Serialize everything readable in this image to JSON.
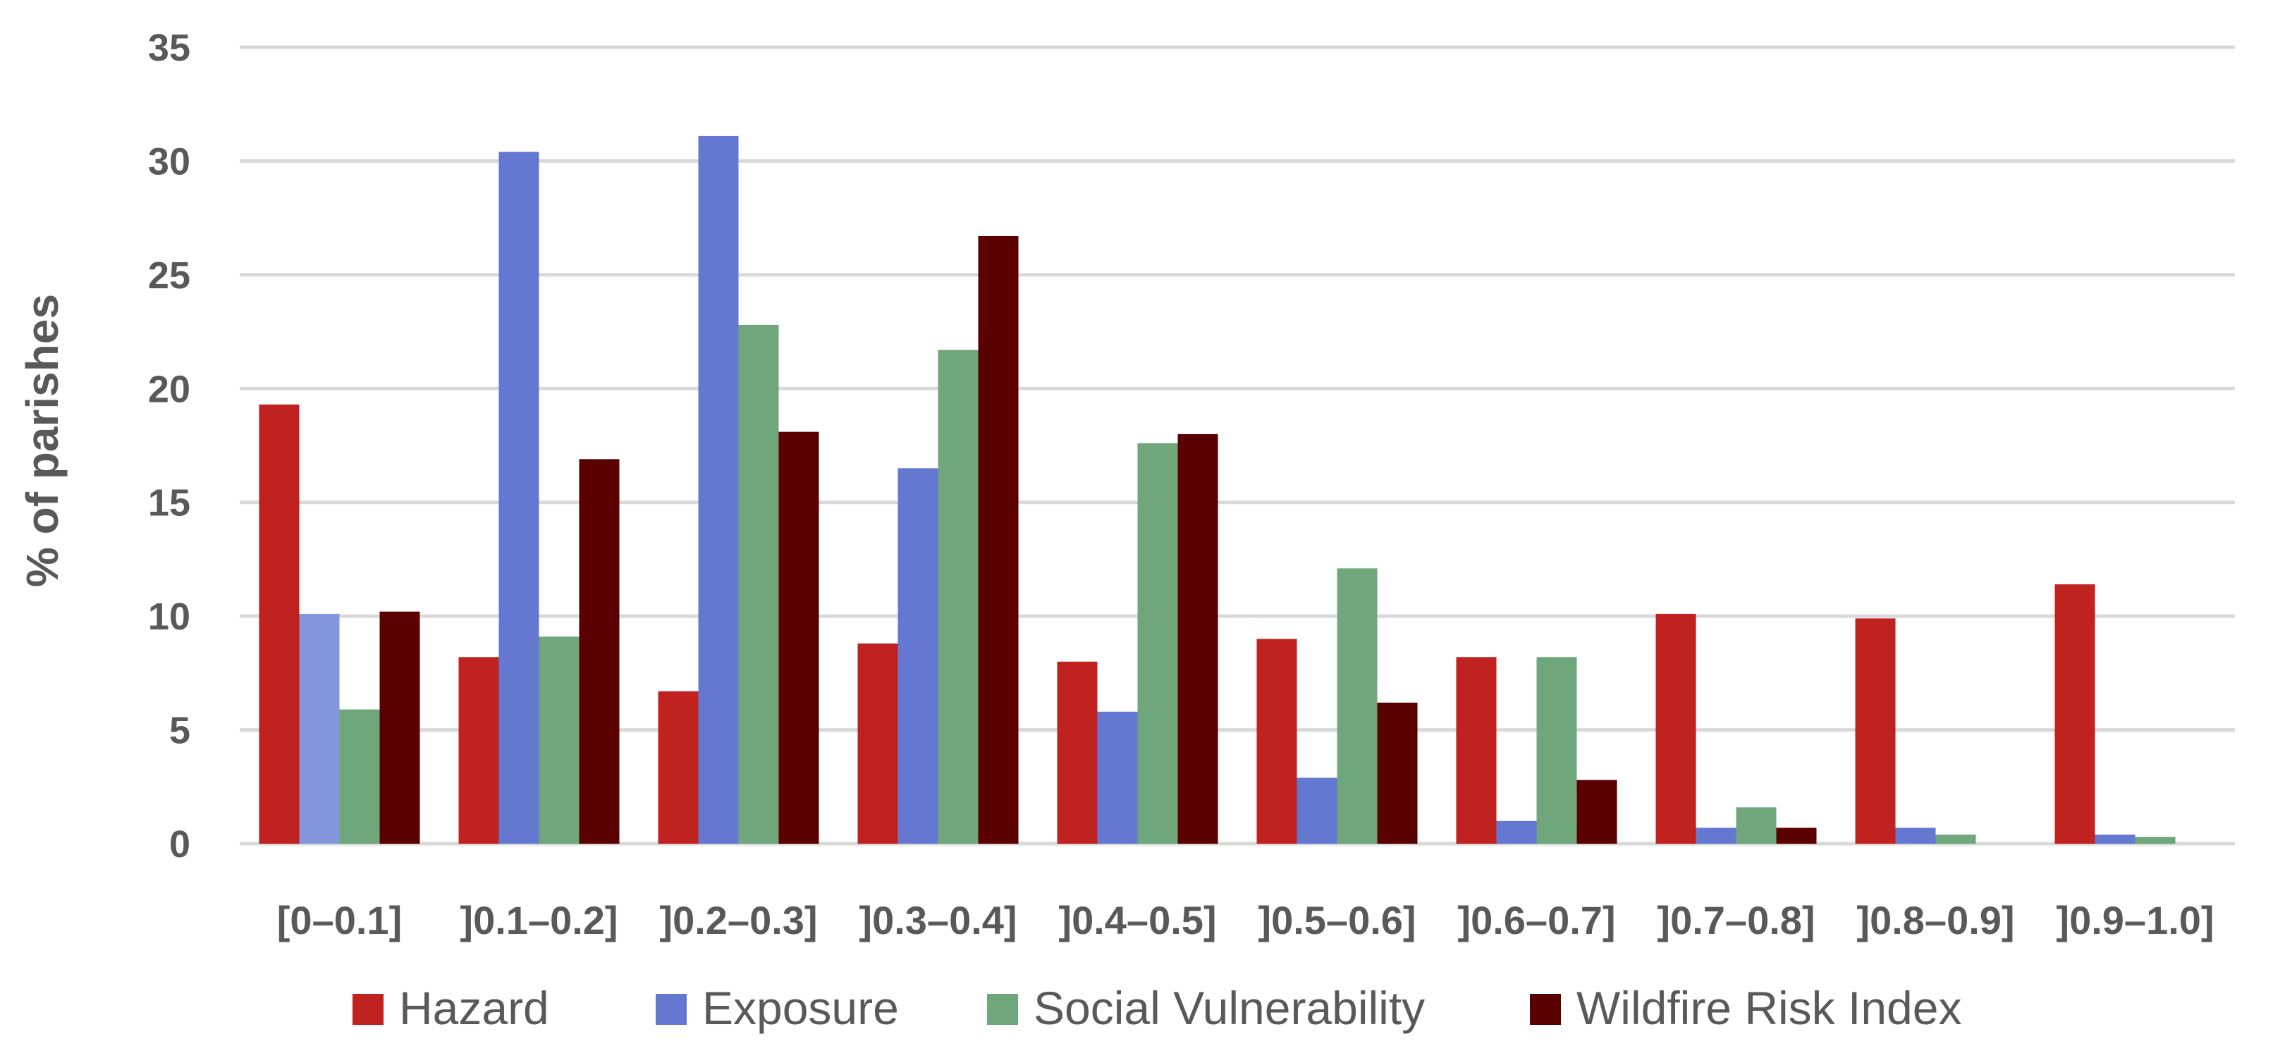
{
  "chart_data": {
    "type": "bar",
    "title": "",
    "xlabel": "",
    "ylabel": "% of parishes",
    "ylim": [
      0,
      35
    ],
    "yticks": [
      0,
      5,
      10,
      15,
      20,
      25,
      30,
      35
    ],
    "grid": true,
    "legend_position": "bottom",
    "categories": [
      "[0–0.1]",
      "]0.1–0.2]",
      "]0.2–0.3]",
      "]0.3–0.4]",
      "]0.4–0.5]",
      "]0.5–0.6]",
      "]0.6–0.7]",
      "]0.7–0.8]",
      "]0.8–0.9]",
      "]0.9–1.0]"
    ],
    "series": [
      {
        "name": "Hazard",
        "color": "#C0221F",
        "values": [
          19.3,
          8.2,
          6.7,
          8.8,
          8.0,
          9.0,
          8.2,
          10.1,
          9.9,
          11.4
        ]
      },
      {
        "name": "Exposure",
        "color": "#6478D2",
        "values": [
          10.1,
          30.4,
          31.1,
          16.5,
          5.8,
          2.9,
          1.0,
          0.7,
          0.7,
          0.4
        ]
      },
      {
        "name": "Social Vulnerability",
        "color": "#70A67C",
        "values": [
          5.9,
          9.1,
          22.8,
          21.7,
          17.6,
          12.1,
          8.2,
          1.6,
          0.4,
          0.3
        ]
      },
      {
        "name": "Wildfire Risk Index",
        "color": "#5A0000",
        "values": [
          10.2,
          16.9,
          18.1,
          26.7,
          18.0,
          6.2,
          2.8,
          0.7,
          0,
          0
        ]
      }
    ]
  }
}
